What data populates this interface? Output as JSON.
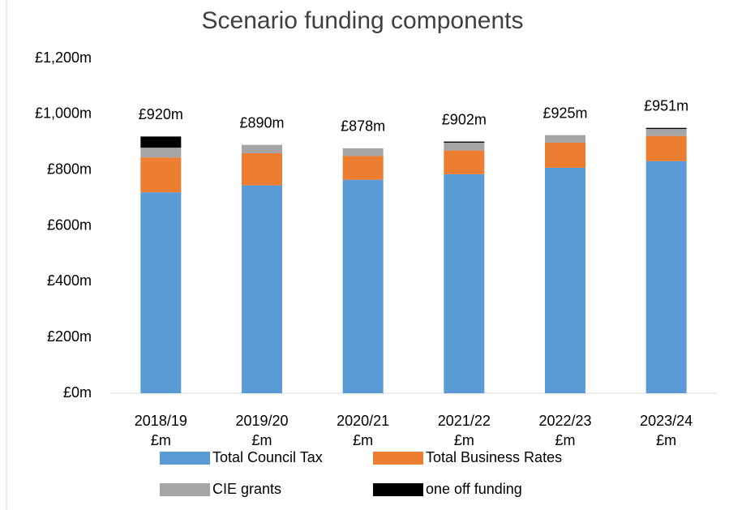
{
  "chart_data": {
    "type": "stacked-bar",
    "title": "Scenario funding components",
    "categories": [
      "2018/19\n£m",
      "2019/20\n£m",
      "2020/21\n£m",
      "2021/22\n£m",
      "2022/23\n£m",
      "2023/24\n£m"
    ],
    "series": [
      {
        "name": "Total Council Tax",
        "color": "#5b9bd5",
        "values": [
          720,
          745,
          765,
          785,
          808,
          832
        ]
      },
      {
        "name": "Total Business Rates",
        "color": "#ed7d31",
        "values": [
          125,
          115,
          85,
          85,
          90,
          90
        ]
      },
      {
        "name": "CIE grants",
        "color": "#a5a5a5",
        "values": [
          35,
          30,
          28,
          28,
          27,
          25
        ]
      },
      {
        "name": "one off funding",
        "color": "#000000",
        "values": [
          40,
          null,
          null,
          4,
          null,
          4
        ]
      }
    ],
    "totals": {
      "values": [
        920,
        890,
        878,
        902,
        925,
        951
      ],
      "value_labels": [
        "£920m",
        "£890m",
        "£878m",
        "£902m",
        "£925m",
        "£951m"
      ]
    },
    "ylim": [
      0,
      1200
    ],
    "yticks": [
      {
        "value": 0,
        "label": "£0m"
      },
      {
        "value": 200,
        "label": "£200m"
      },
      {
        "value": 400,
        "label": "£400m"
      },
      {
        "value": 600,
        "label": "£600m"
      },
      {
        "value": 800,
        "label": "£800m"
      },
      {
        "value": 1000,
        "label": "£1,000m"
      },
      {
        "value": 1200,
        "label": "£1,200m"
      }
    ],
    "grid": false
  }
}
